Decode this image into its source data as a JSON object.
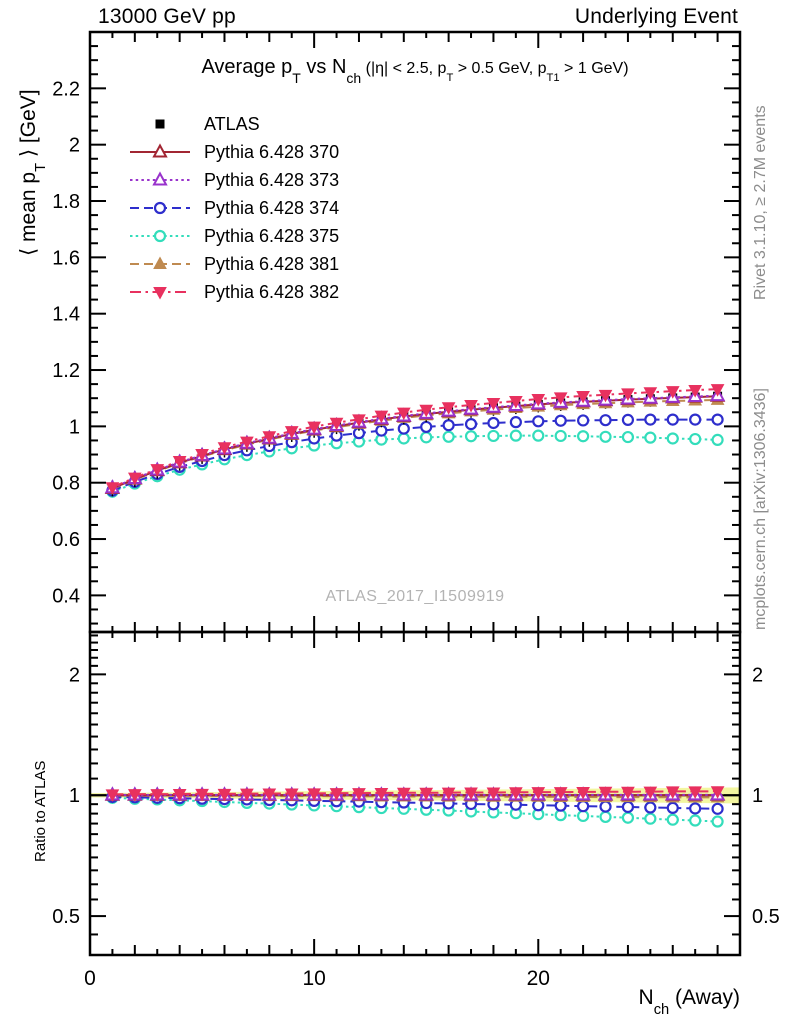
{
  "header": {
    "left": "13000 GeV pp",
    "right": "Underlying Event"
  },
  "side_texts": {
    "rivet": "Rivet 3.1.10, ≥ 2.7M events",
    "mcplots": "mcplots.cern.ch [arXiv:1306.3436]"
  },
  "watermark": {
    "text": "ATLAS_2017_I1509919"
  },
  "chart_data": {
    "type": "line",
    "title": "Average pT vs Nch (|η| < 2.5, pT > 0.5 GeV, pT1 > 1 GeV)",
    "title_parts": {
      "p0": "Average p",
      "p1": "T",
      "p2": " vs N",
      "p3": "ch",
      "p4": " (|η| < 2.5, p",
      "p5": "T",
      "p6": " > 0.5 GeV, p",
      "p7": "T1",
      "p8": " > 1 GeV)"
    },
    "ylabel": "⟨ mean pT ⟩ [GeV]",
    "ylabel_parts": {
      "p0": "⟨ mean p",
      "p1": "T",
      "p2": " ⟩ [GeV]"
    },
    "xlabel": "Nch (Away)",
    "xlabel_parts": {
      "p0": "N",
      "p1": "ch",
      "p2": " (Away)"
    },
    "ratio_ylabel": "Ratio to ATLAS",
    "xlim": [
      0,
      29
    ],
    "ylim_main": [
      0.27,
      2.4
    ],
    "ylim_ratio": [
      0.4,
      2.55
    ],
    "ratio_scale": "log",
    "grid": false,
    "legend_position": "top-left-inside",
    "x_major_ticks": [
      0,
      10,
      20
    ],
    "y_major_ticks_main": [
      0.4,
      0.6,
      0.8,
      1,
      1.2,
      1.4,
      1.6,
      1.8,
      2,
      2.2
    ],
    "y_major_ticks_ratio": [
      0.5,
      1,
      2
    ],
    "x": [
      1,
      2,
      3,
      4,
      5,
      6,
      7,
      8,
      9,
      10,
      11,
      12,
      13,
      14,
      15,
      16,
      17,
      18,
      19,
      20,
      21,
      22,
      23,
      24,
      25,
      26,
      27,
      28
    ],
    "draw_order": [
      4,
      3,
      0,
      5,
      1,
      2,
      6
    ],
    "band": {
      "color": "#f3f6a0",
      "halfwidth_start": 0.012,
      "halfwidth_end": 0.046
    },
    "reference_line": {
      "value": 1,
      "color": "#000000"
    },
    "series": [
      {
        "name": "ATLAS",
        "color": "#000000",
        "marker": "filled-square",
        "line": "none",
        "values": [
          0.78,
          0.813,
          0.843,
          0.871,
          0.895,
          0.918,
          0.938,
          0.956,
          0.973,
          0.988,
          1.001,
          1.013,
          1.025,
          1.035,
          1.044,
          1.052,
          1.059,
          1.066,
          1.072,
          1.078,
          1.083,
          1.087,
          1.091,
          1.095,
          1.098,
          1.101,
          1.104,
          1.107
        ],
        "ratio": null
      },
      {
        "name": "Pythia 6.428 370",
        "color": "#a22633",
        "marker": "open-triangle-up",
        "line": "solid",
        "values": [
          0.78,
          0.813,
          0.843,
          0.871,
          0.895,
          0.918,
          0.938,
          0.956,
          0.973,
          0.988,
          1.001,
          1.013,
          1.025,
          1.035,
          1.044,
          1.052,
          1.059,
          1.066,
          1.072,
          1.078,
          1.083,
          1.087,
          1.091,
          1.095,
          1.098,
          1.101,
          1.104,
          1.107
        ],
        "ratio": [
          1,
          1,
          1,
          1,
          1,
          1,
          1,
          1,
          1,
          1,
          1,
          1,
          1,
          1,
          1,
          1,
          1,
          1,
          1,
          1,
          1,
          1,
          1,
          1,
          1,
          1,
          1,
          1
        ]
      },
      {
        "name": "Pythia 6.428 373",
        "color": "#9933cc",
        "marker": "open-triangle-up",
        "line": "dotted",
        "values": [
          0.782,
          0.815,
          0.845,
          0.873,
          0.897,
          0.92,
          0.94,
          0.958,
          0.975,
          0.99,
          1.003,
          1.015,
          1.027,
          1.037,
          1.046,
          1.054,
          1.061,
          1.068,
          1.074,
          1.08,
          1.085,
          1.089,
          1.093,
          1.097,
          1.1,
          1.103,
          1.106,
          1.109
        ],
        "ratio": [
          1.002,
          1.002,
          1.002,
          1.002,
          1.002,
          1.002,
          1.002,
          1.002,
          1.002,
          1.002,
          1.002,
          1.002,
          1.002,
          1.002,
          1.002,
          1.002,
          1.002,
          1.002,
          1.002,
          1.002,
          1.002,
          1.002,
          1.002,
          1.002,
          1.002,
          1.002,
          1.002,
          1.002
        ]
      },
      {
        "name": "Pythia 6.428 374",
        "color": "#2e2ecc",
        "marker": "open-circle",
        "line": "dashed",
        "values": [
          0.772,
          0.803,
          0.831,
          0.856,
          0.877,
          0.898,
          0.915,
          0.93,
          0.944,
          0.957,
          0.967,
          0.976,
          0.985,
          0.992,
          0.998,
          1.004,
          1.008,
          1.012,
          1.015,
          1.018,
          1.02,
          1.021,
          1.022,
          1.023,
          1.024,
          1.024,
          1.024,
          1.024
        ],
        "ratio": [
          0.99,
          0.988,
          0.985,
          0.983,
          0.98,
          0.978,
          0.976,
          0.973,
          0.971,
          0.968,
          0.966,
          0.964,
          0.961,
          0.959,
          0.956,
          0.954,
          0.951,
          0.949,
          0.947,
          0.944,
          0.942,
          0.939,
          0.937,
          0.935,
          0.932,
          0.93,
          0.927,
          0.925
        ]
      },
      {
        "name": "Pythia 6.428 375",
        "color": "#33ddbb",
        "marker": "open-circle",
        "line": "dotted",
        "values": [
          0.768,
          0.797,
          0.823,
          0.846,
          0.865,
          0.883,
          0.898,
          0.911,
          0.922,
          0.932,
          0.94,
          0.946,
          0.953,
          0.957,
          0.961,
          0.963,
          0.965,
          0.966,
          0.967,
          0.967,
          0.966,
          0.965,
          0.963,
          0.962,
          0.96,
          0.957,
          0.955,
          0.952
        ],
        "ratio": [
          0.985,
          0.98,
          0.976,
          0.971,
          0.967,
          0.962,
          0.957,
          0.953,
          0.948,
          0.943,
          0.939,
          0.934,
          0.929,
          0.925,
          0.92,
          0.916,
          0.911,
          0.906,
          0.902,
          0.897,
          0.892,
          0.888,
          0.883,
          0.879,
          0.874,
          0.869,
          0.865,
          0.86
        ]
      },
      {
        "name": "Pythia 6.428 381",
        "color": "#bf8a50",
        "marker": "filled-triangle-up",
        "line": "dashed",
        "values": [
          0.778,
          0.811,
          0.841,
          0.869,
          0.893,
          0.915,
          0.935,
          0.953,
          0.97,
          0.985,
          0.997,
          1.009,
          1.02,
          1.03,
          1.039,
          1.046,
          1.053,
          1.059,
          1.065,
          1.07,
          1.075,
          1.079,
          1.082,
          1.085,
          1.088,
          1.09,
          1.092,
          1.094
        ],
        "ratio": [
          0.998,
          0.998,
          0.997,
          0.997,
          0.997,
          0.996,
          0.996,
          0.995,
          0.995,
          0.995,
          0.994,
          0.994,
          0.993,
          0.993,
          0.993,
          0.992,
          0.992,
          0.991,
          0.991,
          0.991,
          0.99,
          0.99,
          0.989,
          0.989,
          0.989,
          0.988,
          0.988,
          0.988
        ]
      },
      {
        "name": "Pythia 6.428 382",
        "color": "#e8315f",
        "marker": "filled-triangle-down",
        "line": "dashdot",
        "values": [
          0.784,
          0.818,
          0.848,
          0.877,
          0.902,
          0.926,
          0.946,
          0.965,
          0.983,
          0.999,
          1.013,
          1.025,
          1.038,
          1.049,
          1.059,
          1.068,
          1.076,
          1.083,
          1.09,
          1.097,
          1.103,
          1.108,
          1.112,
          1.117,
          1.121,
          1.125,
          1.129,
          1.132
        ],
        "ratio": [
          1.005,
          1.006,
          1.006,
          1.007,
          1.008,
          1.008,
          1.009,
          1.01,
          1.01,
          1.011,
          1.012,
          1.012,
          1.013,
          1.014,
          1.014,
          1.015,
          1.016,
          1.016,
          1.017,
          1.018,
          1.018,
          1.019,
          1.02,
          1.02,
          1.021,
          1.022,
          1.022,
          1.023
        ]
      }
    ]
  }
}
